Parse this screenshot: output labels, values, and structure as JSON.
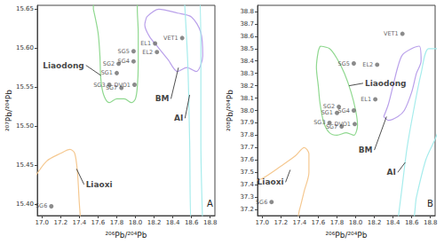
{
  "chart_data": [
    {
      "type": "scatter",
      "panel": "A",
      "x_label": "²⁰⁶Pb/²⁰⁴Pb",
      "y_label": "²⁰⁷Pb/²⁰⁴Pb",
      "xlim": [
        16.95,
        18.85
      ],
      "xticks": [
        {
          "value": 17,
          "label": "17.0"
        },
        17.2,
        17.4,
        17.6,
        17.8,
        {
          "value": 18,
          "label": "18.0"
        },
        18.2,
        18.4,
        18.6,
        18.8
      ],
      "ylim": [
        15.385,
        15.655
      ],
      "yticks": [
        {
          "value": 15.4,
          "label": "15.40"
        },
        15.45,
        {
          "value": 15.5,
          "label": "15.50"
        },
        15.55,
        {
          "value": 15.6,
          "label": "15.60"
        },
        15.65
      ],
      "grid": false,
      "color": "#6e6e6e",
      "points": [
        {
          "label": "SG5",
          "x": 17.98,
          "y": 15.596
        },
        {
          "label": "SG2",
          "x": 17.82,
          "y": 15.58
        },
        {
          "label": "SG4",
          "x": 17.98,
          "y": 15.583
        },
        {
          "label": "SG1",
          "x": 17.8,
          "y": 15.568
        },
        {
          "label": "SG3",
          "x": 17.72,
          "y": 15.553
        },
        {
          "label": "SG7",
          "x": 17.85,
          "y": 15.549
        },
        {
          "label": "DVO1",
          "x": 17.99,
          "y": 15.553
        },
        {
          "label": "EL1",
          "x": 18.21,
          "y": 15.606
        },
        {
          "label": "EL2",
          "x": 18.23,
          "y": 15.595
        },
        {
          "label": "VET1",
          "x": 18.5,
          "y": 15.613
        },
        {
          "label": "SG6",
          "x": 17.1,
          "y": 15.397
        }
      ],
      "regions": [
        {
          "name": "Liaodong",
          "color": "#8fd88f",
          "x": [
            17.55,
            17.6,
            17.62,
            17.63,
            17.66,
            17.72,
            17.8,
            17.88,
            17.96,
            18.0,
            18.02,
            18.03,
            18.03,
            18.02,
            18.02,
            17.55,
            17.55
          ],
          "y": [
            15.65,
            15.62,
            15.59,
            15.56,
            15.54,
            15.53,
            15.535,
            15.535,
            15.53,
            15.535,
            15.55,
            15.58,
            15.62,
            15.65,
            15.67,
            15.67,
            15.65
          ]
        },
        {
          "name": "BM",
          "color": "#b9a0ea",
          "x": [
            18.12,
            18.25,
            18.45,
            18.6,
            18.7,
            18.72,
            18.65,
            18.55,
            18.45,
            18.35,
            18.25,
            18.15,
            18.1,
            18.12
          ],
          "y": [
            15.64,
            15.65,
            15.645,
            15.64,
            15.62,
            15.59,
            15.57,
            15.575,
            15.57,
            15.585,
            15.6,
            15.615,
            15.63,
            15.64
          ]
        },
        {
          "name": "AI",
          "color": "#a6ecec",
          "x": [
            18.52,
            18.56,
            18.58,
            18.6,
            18.72,
            18.7,
            18.7,
            18.68,
            18.52
          ],
          "y": [
            15.67,
            15.58,
            15.48,
            15.37,
            15.37,
            15.48,
            15.58,
            15.67,
            15.67
          ]
        },
        {
          "name": "Liaoxi",
          "color": "#f5c890",
          "x": [
            16.9,
            17.05,
            17.2,
            17.3,
            17.35,
            17.38,
            17.4,
            17.42,
            16.9,
            16.9
          ],
          "y": [
            15.43,
            15.455,
            15.465,
            15.47,
            15.465,
            15.44,
            15.4,
            15.37,
            15.37,
            15.43
          ]
        }
      ],
      "annotations": [
        {
          "text": "Liaodong",
          "x": 17.47,
          "y": 15.578,
          "target_x": 17.63,
          "target_y": 15.565
        },
        {
          "text": "BM",
          "x": 18.38,
          "y": 15.535,
          "target_x": 18.46,
          "target_y": 15.575
        },
        {
          "text": "AI",
          "x": 18.53,
          "y": 15.51,
          "target_x": 18.58,
          "target_y": 15.54
        },
        {
          "text": "Liaoxi",
          "x": 17.45,
          "y": 15.425,
          "target_x": 17.37,
          "target_y": 15.445
        }
      ]
    },
    {
      "type": "scatter",
      "panel": "B",
      "x_label": "²⁰⁶Pb/²⁰⁴Pb",
      "y_label": "²⁰⁸Pb/²⁰⁴Pb",
      "xlim": [
        16.95,
        18.85
      ],
      "xticks": [
        {
          "value": 17,
          "label": "17.0"
        },
        17.2,
        17.4,
        17.6,
        17.8,
        {
          "value": 18,
          "label": "18.0"
        },
        18.2,
        18.4,
        18.6,
        18.8
      ],
      "ylim": [
        37.15,
        38.85
      ],
      "yticks": [
        37.2,
        37.3,
        37.4,
        37.5,
        37.6,
        37.7,
        37.8,
        37.9,
        {
          "value": 38,
          "label": "38.0"
        },
        38.1,
        38.2,
        38.3,
        38.4,
        38.5,
        38.6,
        38.7,
        38.8
      ],
      "grid": false,
      "color": "#6e6e6e",
      "points": [
        {
          "label": "SG5",
          "x": 17.98,
          "y": 38.38
        },
        {
          "label": "SG2",
          "x": 17.82,
          "y": 38.03
        },
        {
          "label": "SG4",
          "x": 17.98,
          "y": 38.0
        },
        {
          "label": "SG1",
          "x": 17.8,
          "y": 37.98
        },
        {
          "label": "SG3",
          "x": 17.72,
          "y": 37.9
        },
        {
          "label": "SG7",
          "x": 17.85,
          "y": 37.87
        },
        {
          "label": "DVO1",
          "x": 17.99,
          "y": 37.89
        },
        {
          "label": "EL1",
          "x": 18.21,
          "y": 38.09
        },
        {
          "label": "EL2",
          "x": 18.23,
          "y": 38.37
        },
        {
          "label": "VET1",
          "x": 18.5,
          "y": 38.62
        },
        {
          "label": "SG6",
          "x": 17.1,
          "y": 37.26
        }
      ],
      "regions": [
        {
          "name": "Liaodong",
          "color": "#8fd88f",
          "x": [
            17.62,
            17.72,
            17.8,
            17.88,
            17.95,
            18.0,
            18.02,
            17.98,
            17.9,
            17.8,
            17.72,
            17.66,
            17.62,
            17.6,
            17.58,
            17.6,
            17.62
          ],
          "y": [
            38.52,
            38.5,
            38.42,
            38.3,
            38.15,
            38.0,
            37.88,
            37.8,
            37.82,
            37.8,
            37.82,
            37.9,
            38.05,
            38.2,
            38.35,
            38.48,
            38.52
          ]
        },
        {
          "name": "BM",
          "color": "#b9a0ea",
          "x": [
            18.3,
            18.35,
            18.4,
            18.45,
            18.5,
            18.6,
            18.68,
            18.7,
            18.65,
            18.6,
            18.52,
            18.45,
            18.35,
            18.3
          ],
          "y": [
            37.95,
            38.05,
            38.2,
            38.35,
            38.45,
            38.5,
            38.52,
            38.4,
            38.3,
            38.15,
            38.0,
            37.95,
            37.92,
            37.95
          ]
        },
        {
          "name": "AI",
          "color": "#a6ecec",
          "x": [
            18.45,
            18.5,
            18.55,
            18.62,
            18.7,
            18.78,
            18.9,
            18.9,
            18.75,
            18.65,
            18.6,
            18.45
          ],
          "y": [
            37.1,
            37.4,
            37.7,
            38.0,
            38.3,
            38.5,
            38.5,
            37.9,
            37.6,
            37.3,
            37.1,
            37.1
          ]
        },
        {
          "name": "Liaoxi",
          "color": "#f5c890",
          "x": [
            16.9,
            17.0,
            17.2,
            17.35,
            17.45,
            17.5,
            17.5,
            17.45,
            17.4,
            17.35,
            16.9,
            16.9
          ],
          "y": [
            37.43,
            37.45,
            37.55,
            37.63,
            37.7,
            37.65,
            37.5,
            37.35,
            37.2,
            37.1,
            37.1,
            37.43
          ]
        }
      ],
      "annotations": [
        {
          "text": "Liaodong",
          "x": 18.08,
          "y": 38.22,
          "target_x": 17.93,
          "target_y": 38.2
        },
        {
          "text": "BM",
          "x": 18.2,
          "y": 37.68,
          "target_x": 18.33,
          "target_y": 37.95
        },
        {
          "text": "AI",
          "x": 18.45,
          "y": 37.5,
          "target_x": 18.53,
          "target_y": 37.58
        },
        {
          "text": "Liaoxi",
          "x": 17.25,
          "y": 37.42,
          "target_x": 17.3,
          "target_y": 37.52
        }
      ]
    }
  ]
}
